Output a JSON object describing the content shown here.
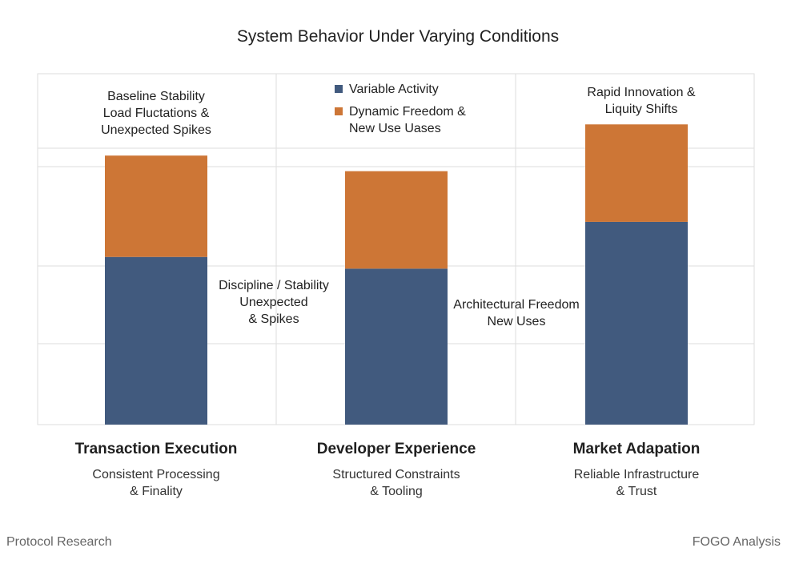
{
  "chart_data": {
    "type": "bar",
    "stacked": true,
    "title": "System Behavior Under Varying Conditions",
    "categories": [
      "Transaction Execution",
      "Developer Experience",
      "Market Adapation"
    ],
    "category_subtitles": [
      [
        "Consistent Processing",
        "& Finality"
      ],
      [
        "Structured Constraints",
        "& Tooling"
      ],
      [
        "Reliable Infrastructure",
        "& Trust"
      ]
    ],
    "series": [
      {
        "name": "Variable Activity",
        "color": "#415a7e",
        "values": [
          43,
          40,
          52
        ]
      },
      {
        "name": "Dynamic Freedom & New Use Uases",
        "color": "#cd7636",
        "values": [
          26,
          25,
          25
        ]
      }
    ],
    "legend": {
      "position": "top-center",
      "entries": [
        {
          "lines": [
            "Variable Activity"
          ],
          "color": "#415a7e"
        },
        {
          "lines": [
            "Dynamic Freedom &",
            "New Use Uases"
          ],
          "color": "#cd7636"
        }
      ]
    },
    "annotations": [
      {
        "lines": [
          "Baseline Stability",
          "Load Fluctations &",
          "Unexpected Spikes"
        ]
      },
      {
        "lines": [
          "Rapid Innovation &",
          "Liquity Shifts"
        ]
      },
      {
        "lines": [
          "Discipline / Stability",
          "Unexpected",
          "& Spikes"
        ]
      },
      {
        "lines": [
          "Architectural Freedom",
          "New Uses"
        ]
      }
    ],
    "ylim": [
      0,
      90
    ],
    "xlabel": "",
    "ylabel": "",
    "grid": true
  },
  "footer": {
    "left": "Protocol Research",
    "right": "FOGO Analysis"
  },
  "colors": {
    "grid": "#dedede",
    "text": "#222222",
    "footer_text": "#666666"
  }
}
